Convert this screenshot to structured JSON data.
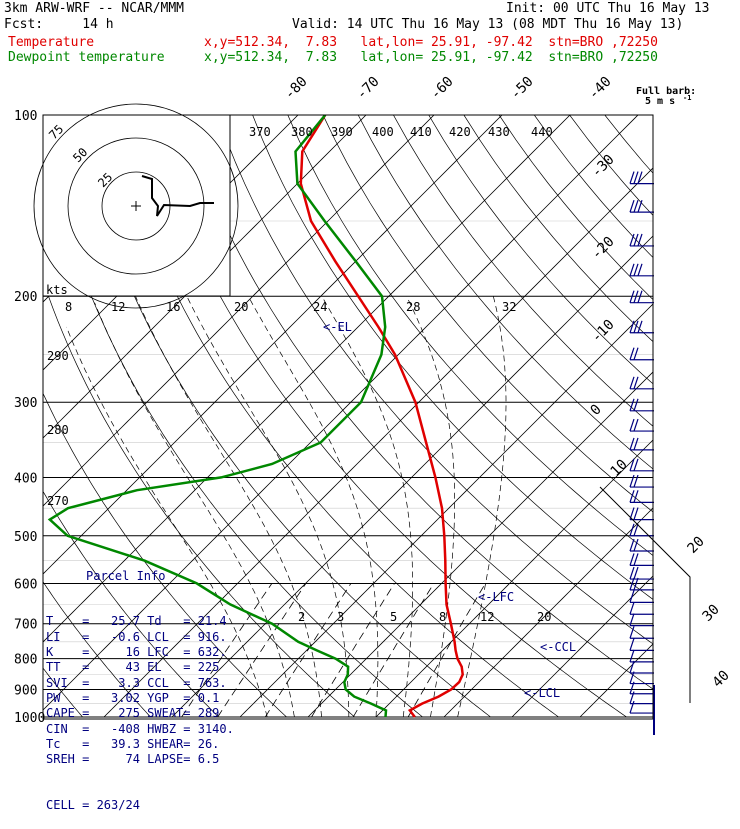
{
  "header": {
    "line1_left": "3km ARW-WRF -- NCAR/MMM",
    "line1_right": "Init: 00 UTC Thu 16 May 13",
    "line2_left": "Fcst:     14 h",
    "line2_right": "Valid: 14 UTC Thu 16 May 13 (08 MDT Thu 16 May 13)",
    "temp_label": "Temperature",
    "temp_info": "x,y=512.34,  7.83   lat,lon= 25.91, -97.42  stn=BRO ,72250",
    "dew_label": "Dewpoint temperature",
    "dew_info": "x,y=512.34,  7.83   lat,lon= 25.91, -97.42  stn=BRO ,72250"
  },
  "colors": {
    "temperature": "#e00000",
    "dewpoint": "#008800",
    "text_info": "#000080",
    "barb": "#000080"
  },
  "barb_legend": {
    "line1": "Full barb:",
    "line2": "5 m s",
    "exp": "-1"
  },
  "parcel_info": {
    "title": "Parcel Info",
    "rows": [
      [
        "T",
        "25.7",
        "Td",
        "21.4"
      ],
      [
        "LI",
        "-0.6",
        "LCL",
        "916."
      ],
      [
        "K",
        "16",
        "LFC",
        "632."
      ],
      [
        "TT",
        "43",
        "EL",
        "225"
      ],
      [
        "SVI",
        "3.3",
        "CCL",
        "763."
      ],
      [
        "PW",
        "3.02",
        "YGP",
        "0.1"
      ],
      [
        "CAPE",
        "275",
        "SWEAT",
        "289"
      ],
      [
        "CIN",
        "-408",
        "HWBZ",
        "3140."
      ],
      [
        "Tc",
        "39.3",
        "SHEAR",
        "26."
      ],
      [
        "SREH",
        "74",
        "LAPSE",
        "6.5"
      ]
    ],
    "cell": "CELL = 263/24"
  },
  "chart_data": {
    "type": "line",
    "diagram": "Skew-T log-P",
    "y_scale": "log",
    "ylim": [
      1000,
      100
    ],
    "pressure_labels": [
      100,
      200,
      300,
      400,
      500,
      600,
      700,
      800,
      900,
      1000
    ],
    "isotherm_labels": [
      "-80",
      "-70",
      "-60",
      "-50",
      "-40",
      "-30",
      "-20",
      "-10",
      "0",
      "10",
      "20",
      "30",
      "40"
    ],
    "theta_labels": [
      "370",
      "380",
      "390",
      "400",
      "410",
      "420",
      "430",
      "440"
    ],
    "theta_labels_low": [
      "290",
      "280",
      "270"
    ],
    "mixing_ratio_labels": [
      "2",
      "3",
      "5",
      "8",
      "12",
      "20"
    ],
    "hodo": {
      "units_label": "kts",
      "speed_labels": [
        "8",
        "12",
        "16",
        "20",
        "24",
        "28",
        "32"
      ],
      "ring_labels": [
        "75",
        "50",
        "25"
      ]
    },
    "markers": {
      "el": "<-EL",
      "lfc": "<-LFC",
      "ccl": "<-CCL",
      "lcl": "<-LCL"
    },
    "series": [
      {
        "name": "Temperature",
        "p": [
          1000,
          975,
          950,
          925,
          900,
          875,
          850,
          825,
          800,
          775,
          750,
          700,
          650,
          600,
          550,
          500,
          450,
          400,
          350,
          300,
          250,
          225,
          200,
          175,
          150,
          130,
          115,
          100
        ],
        "t": [
          25.7,
          24.0,
          24.8,
          26.2,
          27.0,
          27.1,
          26.5,
          25.2,
          23.4,
          21.9,
          20.5,
          17.3,
          13.8,
          10.6,
          7.2,
          3.4,
          -1.0,
          -6.5,
          -13.0,
          -20.5,
          -30.5,
          -37.0,
          -44.5,
          -53.0,
          -62.5,
          -69.5,
          -74.0,
          -76.0
        ]
      },
      {
        "name": "Dewpoint temperature",
        "p": [
          1000,
          975,
          950,
          925,
          900,
          875,
          850,
          825,
          800,
          775,
          750,
          700,
          650,
          600,
          550,
          500,
          470,
          450,
          420,
          400,
          380,
          350,
          300,
          250,
          225,
          200,
          175,
          150,
          130,
          115,
          100
        ],
        "td": [
          21.4,
          20.5,
          17.3,
          13.8,
          11.5,
          10.2,
          9.6,
          8.5,
          5.5,
          1.5,
          -2.5,
          -9.0,
          -18.0,
          -26.0,
          -37.0,
          -52.0,
          -57.0,
          -56.0,
          -48.5,
          -38.0,
          -32.5,
          -28.5,
          -28.5,
          -32.5,
          -36.0,
          -41.0,
          -50.0,
          -60.5,
          -70.0,
          -75.0,
          -76.0
        ]
      }
    ],
    "wind_barbs": {
      "levels_hPa": [
        130,
        145,
        165,
        185,
        205,
        230,
        255,
        285,
        310,
        335,
        360,
        390,
        415,
        440,
        470,
        500,
        530,
        560,
        590,
        615,
        645,
        675,
        705,
        740,
        775,
        810,
        845,
        880,
        915,
        950,
        985
      ]
    }
  }
}
